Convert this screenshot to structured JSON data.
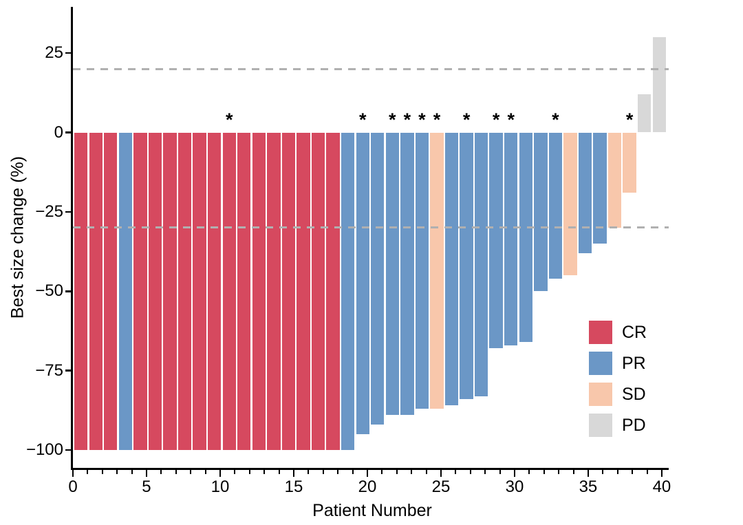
{
  "chart_data": {
    "type": "bar",
    "title": "",
    "xlabel": "Patient Number",
    "ylabel": "Best size change (%)",
    "x_ticks": [
      0,
      5,
      10,
      15,
      20,
      25,
      30,
      35,
      40
    ],
    "x_minor_ticks_every": 1,
    "x_max": 40,
    "y_ticks": [
      25,
      0,
      -25,
      -50,
      -75,
      -100
    ],
    "ylim": [
      -106,
      39
    ],
    "grid": false,
    "legend_position": "right-middle",
    "annotation_symbol": "*",
    "reference_lines": [
      {
        "y": 20,
        "style": "dashed",
        "color": "#b0b0b0"
      },
      {
        "y": -30,
        "style": "dashed",
        "color": "#b0b0b0"
      }
    ],
    "legend": [
      {
        "label": "CR",
        "color": "#d6495f"
      },
      {
        "label": "PR",
        "color": "#6b97c6"
      },
      {
        "label": "SD",
        "color": "#f8c7ab"
      },
      {
        "label": "PD",
        "color": "#d8d8d8"
      }
    ],
    "bars": [
      {
        "patient": 1,
        "value": -100,
        "response": "CR",
        "annotated": false
      },
      {
        "patient": 2,
        "value": -100,
        "response": "CR",
        "annotated": false
      },
      {
        "patient": 3,
        "value": -100,
        "response": "CR",
        "annotated": false
      },
      {
        "patient": 4,
        "value": -100,
        "response": "PR",
        "annotated": false
      },
      {
        "patient": 5,
        "value": -100,
        "response": "CR",
        "annotated": false
      },
      {
        "patient": 6,
        "value": -100,
        "response": "CR",
        "annotated": false
      },
      {
        "patient": 7,
        "value": -100,
        "response": "CR",
        "annotated": false
      },
      {
        "patient": 8,
        "value": -100,
        "response": "CR",
        "annotated": false
      },
      {
        "patient": 9,
        "value": -100,
        "response": "CR",
        "annotated": false
      },
      {
        "patient": 10,
        "value": -100,
        "response": "CR",
        "annotated": false
      },
      {
        "patient": 11,
        "value": -100,
        "response": "CR",
        "annotated": true
      },
      {
        "patient": 12,
        "value": -100,
        "response": "CR",
        "annotated": false
      },
      {
        "patient": 13,
        "value": -100,
        "response": "CR",
        "annotated": false
      },
      {
        "patient": 14,
        "value": -100,
        "response": "CR",
        "annotated": false
      },
      {
        "patient": 15,
        "value": -100,
        "response": "CR",
        "annotated": false
      },
      {
        "patient": 16,
        "value": -100,
        "response": "CR",
        "annotated": false
      },
      {
        "patient": 17,
        "value": -100,
        "response": "CR",
        "annotated": false
      },
      {
        "patient": 18,
        "value": -100,
        "response": "CR",
        "annotated": false
      },
      {
        "patient": 19,
        "value": -100,
        "response": "PR",
        "annotated": false
      },
      {
        "patient": 20,
        "value": -95,
        "response": "PR",
        "annotated": true
      },
      {
        "patient": 21,
        "value": -92,
        "response": "PR",
        "annotated": false
      },
      {
        "patient": 22,
        "value": -89,
        "response": "PR",
        "annotated": true
      },
      {
        "patient": 23,
        "value": -89,
        "response": "PR",
        "annotated": true
      },
      {
        "patient": 24,
        "value": -87,
        "response": "PR",
        "annotated": true
      },
      {
        "patient": 25,
        "value": -87,
        "response": "SD",
        "annotated": true
      },
      {
        "patient": 26,
        "value": -86,
        "response": "PR",
        "annotated": false
      },
      {
        "patient": 27,
        "value": -84,
        "response": "PR",
        "annotated": true
      },
      {
        "patient": 28,
        "value": -83,
        "response": "PR",
        "annotated": false
      },
      {
        "patient": 29,
        "value": -68,
        "response": "PR",
        "annotated": true
      },
      {
        "patient": 30,
        "value": -67,
        "response": "PR",
        "annotated": true
      },
      {
        "patient": 31,
        "value": -66,
        "response": "PR",
        "annotated": false
      },
      {
        "patient": 32,
        "value": -50,
        "response": "PR",
        "annotated": false
      },
      {
        "patient": 33,
        "value": -46,
        "response": "PR",
        "annotated": true
      },
      {
        "patient": 34,
        "value": -45,
        "response": "SD",
        "annotated": false
      },
      {
        "patient": 35,
        "value": -38,
        "response": "PR",
        "annotated": false
      },
      {
        "patient": 36,
        "value": -35,
        "response": "PR",
        "annotated": false
      },
      {
        "patient": 37,
        "value": -30,
        "response": "SD",
        "annotated": false
      },
      {
        "patient": 38,
        "value": -19,
        "response": "SD",
        "annotated": true
      },
      {
        "patient": 39,
        "value": 12,
        "response": "PD",
        "annotated": false
      },
      {
        "patient": 40,
        "value": 30,
        "response": "PD",
        "annotated": false
      }
    ]
  }
}
